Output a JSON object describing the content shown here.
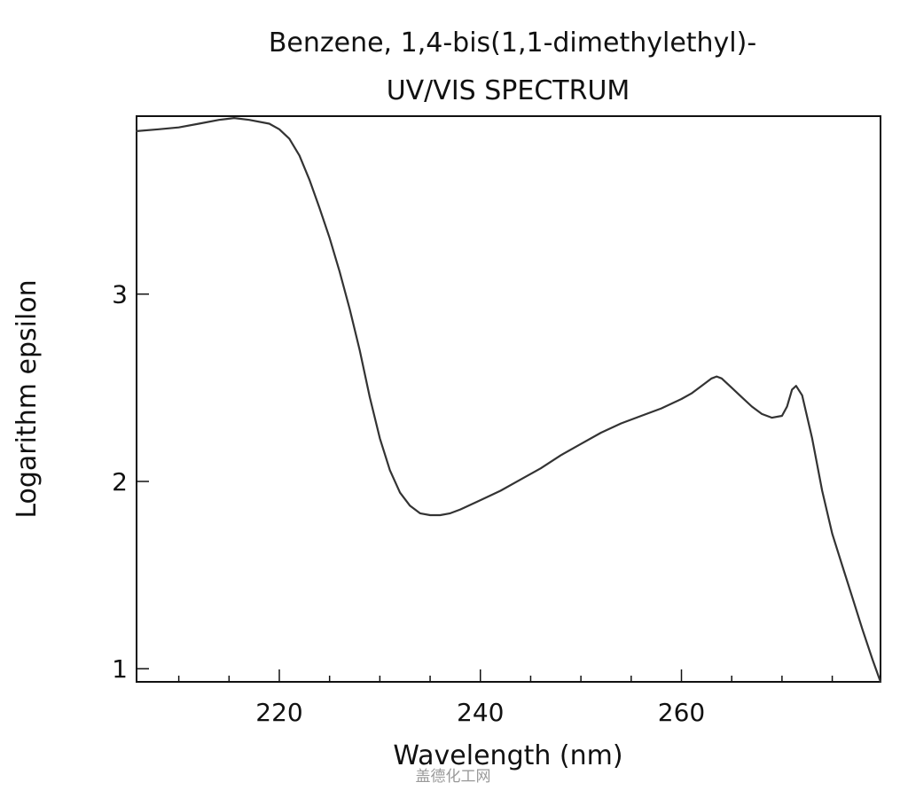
{
  "chart_data": {
    "type": "line",
    "title": "Benzene, 1,4-bis(1,1-dimethylethyl)-",
    "subtitle": "UV/VIS SPECTRUM",
    "xlabel": "Wavelength (nm)",
    "ylabel": "Logarithm epsilon",
    "xlim": [
      205.8,
      279.8
    ],
    "ylim": [
      0.93,
      3.95
    ],
    "x_ticks_major": [
      220,
      240,
      260
    ],
    "x_tick_labels": [
      "220",
      "240",
      "260"
    ],
    "x_ticks_minor": [
      210,
      215,
      225,
      230,
      235,
      245,
      250,
      255,
      265,
      270,
      275
    ],
    "y_ticks": [
      1,
      2,
      3
    ],
    "y_tick_labels": [
      "1",
      "2",
      "3"
    ],
    "grid": false,
    "legend": "none",
    "line_color": "#333333",
    "series": [
      {
        "x": [
          205.8,
          208,
          210,
          212,
          214,
          215.5,
          217,
          219,
          220,
          221,
          222,
          223,
          224,
          225,
          226,
          227,
          228,
          229,
          230,
          231,
          232,
          233,
          234,
          235,
          236,
          237,
          238,
          240,
          242,
          244,
          246,
          248,
          250,
          252,
          254,
          256,
          258,
          260,
          261,
          262,
          263,
          263.5,
          264,
          265,
          266,
          267,
          268,
          269,
          270,
          270.5,
          271,
          271.4,
          272,
          273,
          274,
          275,
          276,
          277,
          278,
          279,
          279.8
        ],
        "y": [
          3.87,
          3.88,
          3.89,
          3.91,
          3.93,
          3.94,
          3.93,
          3.91,
          3.88,
          3.83,
          3.74,
          3.61,
          3.46,
          3.3,
          3.12,
          2.92,
          2.7,
          2.45,
          2.23,
          2.06,
          1.94,
          1.87,
          1.83,
          1.82,
          1.82,
          1.83,
          1.85,
          1.9,
          1.95,
          2.01,
          2.07,
          2.14,
          2.2,
          2.26,
          2.31,
          2.35,
          2.39,
          2.44,
          2.47,
          2.51,
          2.55,
          2.56,
          2.55,
          2.5,
          2.45,
          2.4,
          2.36,
          2.34,
          2.35,
          2.4,
          2.49,
          2.51,
          2.46,
          2.23,
          1.95,
          1.72,
          1.55,
          1.38,
          1.21,
          1.05,
          0.93
        ]
      }
    ]
  },
  "watermark": "盖德化工网"
}
